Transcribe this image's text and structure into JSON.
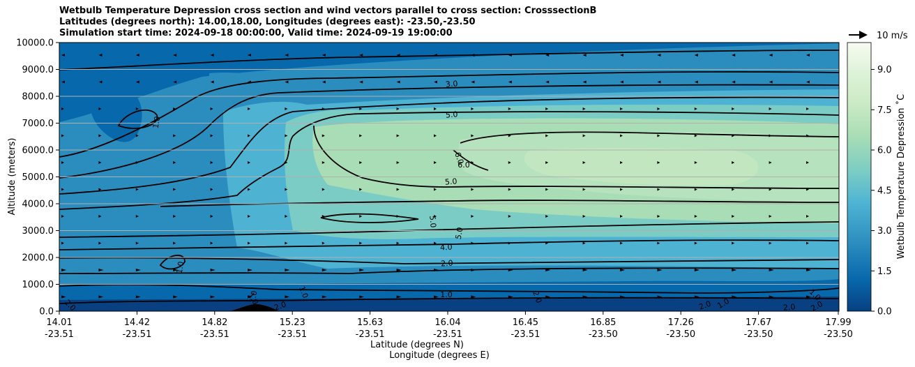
{
  "chart_data": {
    "type": "contour_cross_section",
    "title": {
      "line1": "Wetbulb Temperature Depression cross section and wind vectors parallel to cross section: CrosssectionB",
      "line2": "Latitudes (degrees north): 14.00,18.00, Longitudes (degrees east): -23.50,-23.50",
      "line3": "Simulation start time: 2024-09-18 00:00:00, Valid time: 2024-09-19 19:00:00"
    },
    "ylabel": "Altitude (meters)",
    "xlabel_lat": "Latitude (degrees N)",
    "xlabel_lon": "Longitude (degrees E)",
    "ylim": [
      0,
      10000
    ],
    "y_ticks": [
      "0.0",
      "1000.0",
      "2000.0",
      "3000.0",
      "4000.0",
      "5000.0",
      "6000.0",
      "7000.0",
      "8000.0",
      "9000.0",
      "10000.0"
    ],
    "x_ticks": [
      {
        "lat": "14.01",
        "lon": "-23.51"
      },
      {
        "lat": "14.42",
        "lon": "-23.51"
      },
      {
        "lat": "14.82",
        "lon": "-23.51"
      },
      {
        "lat": "15.23",
        "lon": "-23.51"
      },
      {
        "lat": "15.63",
        "lon": "-23.51"
      },
      {
        "lat": "16.04",
        "lon": "-23.51"
      },
      {
        "lat": "16.45",
        "lon": "-23.51"
      },
      {
        "lat": "16.85",
        "lon": "-23.50"
      },
      {
        "lat": "17.26",
        "lon": "-23.50"
      },
      {
        "lat": "17.67",
        "lon": "-23.50"
      },
      {
        "lat": "17.99",
        "lon": "-23.50"
      }
    ],
    "colorbar": {
      "label": "Wetbulb Temperature Depression ˚C",
      "range": [
        0,
        10
      ],
      "ticks": [
        "0.0",
        "1.5",
        "3.0",
        "4.5",
        "6.0",
        "7.5",
        "9.0"
      ],
      "colors": [
        "#084081",
        "#0868ac",
        "#2b8cbe",
        "#4eb3d3",
        "#7bccc4",
        "#a8ddb5",
        "#ccebc5",
        "#e0f3db",
        "#f7fcf0"
      ]
    },
    "wind_reference": "10 m/s",
    "contour_labels": [
      "3.0",
      "5.0",
      "6.0",
      "6.0",
      "5.0",
      "5.0",
      "5.0",
      "4.0",
      "2.0",
      "1.0",
      "1.0",
      "1.0",
      "1.0",
      "1.0",
      "1.0",
      "2.0",
      "2.0",
      "2.0",
      "2.0",
      "2.0",
      "1.0",
      "2.0",
      "1.0"
    ]
  }
}
